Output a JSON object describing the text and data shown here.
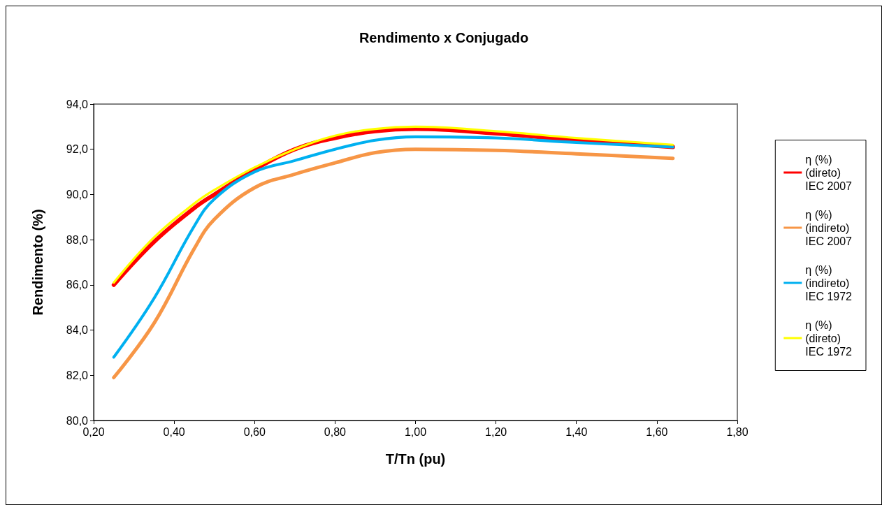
{
  "chart_data": {
    "type": "line",
    "title": "Rendimento x Conjugado",
    "xlabel": "T/Tn (pu)",
    "ylabel": "Rendimento (%)",
    "x": [
      0.25,
      0.35,
      0.45,
      0.5,
      0.6,
      0.7,
      0.8,
      0.9,
      1.0,
      1.2,
      1.4,
      1.64
    ],
    "series": [
      {
        "name": "η (%)\n(direto)\nIEC 2007",
        "color": "#ff0000",
        "values": [
          86.0,
          87.9,
          89.4,
          90.0,
          91.1,
          92.0,
          92.5,
          92.8,
          92.9,
          92.7,
          92.4,
          92.1
        ]
      },
      {
        "name": "η (%)\n(indireto)\nIEC 2007",
        "color": "#f79646",
        "values": [
          81.9,
          84.3,
          87.6,
          88.9,
          90.3,
          90.9,
          91.4,
          91.85,
          92.0,
          91.95,
          91.8,
          91.6
        ]
      },
      {
        "name": "η (%)\n(indireto)\nIEC 1972",
        "color": "#00b0f0",
        "values": [
          82.8,
          85.4,
          88.6,
          89.8,
          91.0,
          91.5,
          92.0,
          92.4,
          92.55,
          92.5,
          92.3,
          92.1
        ]
      },
      {
        "name": "η (%)\n(direto)\nIEC 1972",
        "color": "#ffff00",
        "values": [
          86.1,
          88.1,
          89.6,
          90.2,
          91.2,
          92.0,
          92.6,
          92.9,
          93.0,
          92.8,
          92.5,
          92.2
        ]
      }
    ],
    "xlim": [
      0.2,
      1.8
    ],
    "xticks": [
      {
        "value": 0.2,
        "label": "0,20"
      },
      {
        "value": 0.4,
        "label": "0,40"
      },
      {
        "value": 0.6,
        "label": "0,60"
      },
      {
        "value": 0.8,
        "label": "0,80"
      },
      {
        "value": 1.0,
        "label": "1,00"
      },
      {
        "value": 1.2,
        "label": "1,20"
      },
      {
        "value": 1.4,
        "label": "1,40"
      },
      {
        "value": 1.6,
        "label": "1,60"
      },
      {
        "value": 1.8,
        "label": "1,80"
      }
    ],
    "ylim": [
      80,
      94
    ],
    "yticks": [
      {
        "value": 80,
        "label": "80,0"
      },
      {
        "value": 82,
        "label": "82,0"
      },
      {
        "value": 84,
        "label": "84,0"
      },
      {
        "value": 86,
        "label": "86,0"
      },
      {
        "value": 88,
        "label": "88,0"
      },
      {
        "value": 90,
        "label": "90,0"
      },
      {
        "value": 92,
        "label": "92,0"
      },
      {
        "value": 94,
        "label": "94,0"
      }
    ],
    "grid": false,
    "legend": "right",
    "marker": "none",
    "line_style": "solid"
  }
}
